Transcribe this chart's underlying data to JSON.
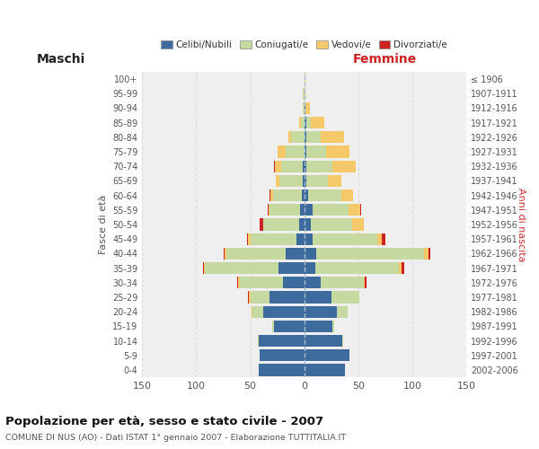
{
  "age_groups": [
    "0-4",
    "5-9",
    "10-14",
    "15-19",
    "20-24",
    "25-29",
    "30-34",
    "35-39",
    "40-44",
    "45-49",
    "50-54",
    "55-59",
    "60-64",
    "65-69",
    "70-74",
    "75-79",
    "80-84",
    "85-89",
    "90-94",
    "95-99",
    "100+"
  ],
  "birth_years": [
    "2002-2006",
    "1997-2001",
    "1992-1996",
    "1987-1991",
    "1982-1986",
    "1977-1981",
    "1972-1976",
    "1967-1971",
    "1962-1966",
    "1957-1961",
    "1952-1956",
    "1947-1951",
    "1942-1946",
    "1937-1941",
    "1932-1936",
    "1927-1931",
    "1922-1926",
    "1917-1921",
    "1912-1916",
    "1907-1911",
    "≤ 1906"
  ],
  "male_celibi": [
    42,
    41,
    42,
    28,
    38,
    32,
    20,
    24,
    17,
    7,
    5,
    4,
    2,
    1,
    1,
    0,
    0,
    0,
    0,
    0,
    0
  ],
  "male_coniugati": [
    0,
    0,
    1,
    2,
    10,
    18,
    40,
    68,
    55,
    43,
    33,
    28,
    27,
    22,
    20,
    17,
    12,
    3,
    1,
    1,
    0
  ],
  "male_vedovi": [
    0,
    0,
    0,
    0,
    1,
    1,
    1,
    1,
    2,
    2,
    0,
    1,
    2,
    3,
    6,
    8,
    3,
    2,
    0,
    0,
    0
  ],
  "male_divorziati": [
    0,
    0,
    0,
    0,
    0,
    1,
    1,
    1,
    1,
    1,
    3,
    1,
    1,
    0,
    1,
    0,
    0,
    0,
    0,
    0,
    0
  ],
  "female_celibi": [
    38,
    42,
    35,
    26,
    30,
    25,
    15,
    10,
    11,
    8,
    6,
    8,
    4,
    2,
    2,
    2,
    2,
    2,
    1,
    0,
    0
  ],
  "female_coniugati": [
    0,
    0,
    1,
    2,
    10,
    26,
    40,
    78,
    100,
    60,
    38,
    33,
    30,
    20,
    24,
    18,
    13,
    4,
    0,
    0,
    0
  ],
  "female_vedovi": [
    0,
    0,
    0,
    0,
    0,
    0,
    1,
    2,
    4,
    4,
    11,
    11,
    11,
    12,
    22,
    22,
    22,
    13,
    4,
    1,
    1
  ],
  "female_divorziati": [
    0,
    0,
    0,
    0,
    0,
    0,
    2,
    3,
    2,
    3,
    0,
    1,
    0,
    0,
    0,
    0,
    0,
    0,
    0,
    0,
    0
  ],
  "color_celibi": "#3d6b9e",
  "color_coniugati": "#c5d9a0",
  "color_vedovi": "#f5c96a",
  "color_divorziati": "#cc2222",
  "title": "Popolazione per età, sesso e stato civile - 2007",
  "subtitle": "COMUNE DI NUS (AO) - Dati ISTAT 1° gennaio 2007 - Elaborazione TUTTITALIA.IT",
  "xlabel_left": "Maschi",
  "xlabel_right": "Femmine",
  "ylabel_left": "Fasce di età",
  "ylabel_right": "Anni di nascita",
  "xlim": 150,
  "background_color": "#ffffff",
  "plot_bg_color": "#efefef",
  "grid_color": "#dddddd"
}
